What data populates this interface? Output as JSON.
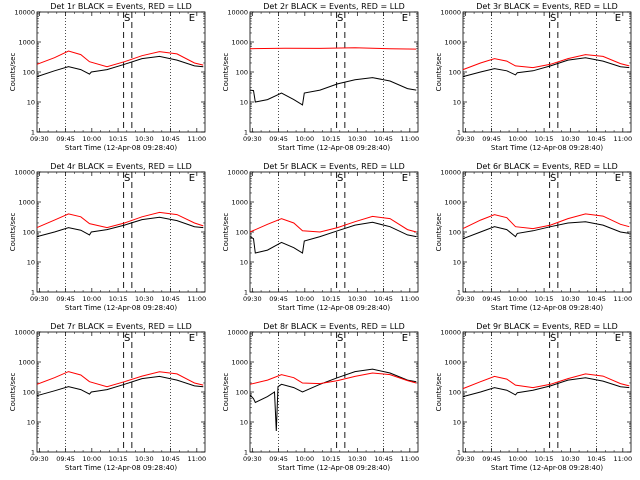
{
  "chart_data": [
    {
      "type": "line",
      "title": "Det 1r BLACK = Events, RED = LLD",
      "xlabel": "Start Time (12-Apr-08 09:28:40)",
      "ylabel": "Counts/sec",
      "yscale": "log",
      "ylim": [
        1,
        10000
      ],
      "yticks": [
        "1",
        "10",
        "100",
        "1000",
        "10000"
      ],
      "xticks": [
        "09:30",
        "09:45",
        "10:00",
        "10:15",
        "10:30",
        "10:45",
        "11:00"
      ],
      "markers": [
        "S",
        "E"
      ],
      "series": [
        {
          "name": "BLACK",
          "color": "#000000",
          "t": [
            0,
            10,
            18,
            25,
            30,
            31,
            40,
            50,
            60,
            70,
            80,
            90,
            95
          ],
          "values": [
            70,
            110,
            150,
            120,
            85,
            100,
            120,
            180,
            280,
            330,
            250,
            160,
            150
          ]
        },
        {
          "name": "RED",
          "color": "#ff0000",
          "t": [
            0,
            10,
            18,
            25,
            30,
            40,
            50,
            60,
            70,
            80,
            90,
            95
          ],
          "values": [
            180,
            300,
            500,
            380,
            220,
            150,
            220,
            350,
            480,
            400,
            200,
            170
          ]
        }
      ]
    },
    {
      "type": "line",
      "title": "Det 2r BLACK = Events, RED = LLD",
      "xlabel": "Start Time (12-Apr-08 09:28:40)",
      "ylabel": "Counts/sec",
      "yscale": "log",
      "ylim": [
        1,
        10000
      ],
      "yticks": [
        "1",
        "10",
        "100",
        "1000",
        "10000"
      ],
      "xticks": [
        "09:30",
        "09:45",
        "10:00",
        "10:15",
        "10:30",
        "10:45",
        "11:00"
      ],
      "markers": [
        "S",
        "E"
      ],
      "series": [
        {
          "name": "BLACK",
          "color": "#000000",
          "t": [
            0,
            2,
            3,
            10,
            18,
            25,
            30,
            31,
            40,
            50,
            60,
            70,
            80,
            90,
            95
          ],
          "values": [
            25,
            24,
            10,
            12,
            20,
            12,
            8,
            20,
            25,
            40,
            55,
            65,
            50,
            28,
            25
          ]
        },
        {
          "name": "RED",
          "color": "#ff0000",
          "t": [
            0,
            20,
            40,
            60,
            70,
            80,
            95
          ],
          "values": [
            600,
            620,
            610,
            640,
            620,
            600,
            580
          ]
        }
      ]
    },
    {
      "type": "line",
      "title": "Det 3r BLACK = Events, RED = LLD",
      "xlabel": "Start Time (12-Apr-08 09:28:40)",
      "ylabel": "Counts/sec",
      "yscale": "log",
      "ylim": [
        1,
        10000
      ],
      "yticks": [
        "1",
        "10",
        "100",
        "1000",
        "10000"
      ],
      "xticks": [
        "09:30",
        "09:45",
        "10:00",
        "10:15",
        "10:30",
        "10:45",
        "11:00"
      ],
      "markers": [
        "S",
        "E"
      ],
      "series": [
        {
          "name": "BLACK",
          "color": "#000000",
          "t": [
            0,
            10,
            18,
            25,
            30,
            31,
            40,
            50,
            60,
            70,
            80,
            90,
            95
          ],
          "values": [
            70,
            100,
            130,
            110,
            80,
            95,
            110,
            160,
            250,
            300,
            230,
            150,
            140
          ]
        },
        {
          "name": "RED",
          "color": "#ff0000",
          "t": [
            0,
            10,
            18,
            25,
            30,
            40,
            50,
            60,
            70,
            80,
            90,
            95
          ],
          "values": [
            120,
            200,
            280,
            230,
            160,
            140,
            180,
            280,
            380,
            330,
            190,
            160
          ]
        }
      ]
    },
    {
      "type": "line",
      "title": "Det 4r BLACK = Events, RED = LLD",
      "xlabel": "Start Time (12-Apr-08 09:28:40)",
      "ylabel": "Counts/sec",
      "yscale": "log",
      "ylim": [
        1,
        10000
      ],
      "yticks": [
        "1",
        "10",
        "100",
        "1000",
        "10000"
      ],
      "xticks": [
        "09:30",
        "09:45",
        "10:00",
        "10:15",
        "10:30",
        "10:45",
        "11:00"
      ],
      "markers": [
        "S",
        "E"
      ],
      "series": [
        {
          "name": "BLACK",
          "color": "#000000",
          "t": [
            0,
            10,
            18,
            25,
            30,
            31,
            40,
            50,
            60,
            70,
            80,
            90,
            95
          ],
          "values": [
            70,
            100,
            140,
            115,
            80,
            100,
            120,
            170,
            260,
            310,
            240,
            150,
            140
          ]
        },
        {
          "name": "RED",
          "color": "#ff0000",
          "t": [
            0,
            10,
            18,
            25,
            30,
            40,
            50,
            60,
            70,
            80,
            90,
            95
          ],
          "values": [
            140,
            250,
            400,
            320,
            190,
            140,
            200,
            320,
            450,
            380,
            200,
            160
          ]
        }
      ]
    },
    {
      "type": "line",
      "title": "Det 5r BLACK = Events, RED = LLD",
      "xlabel": "Start Time (12-Apr-08 09:28:40)",
      "ylabel": "Counts/sec",
      "yscale": "log",
      "ylim": [
        1,
        10000
      ],
      "yticks": [
        "1",
        "10",
        "100",
        "1000",
        "10000"
      ],
      "xticks": [
        "09:30",
        "09:45",
        "10:00",
        "10:15",
        "10:30",
        "10:45",
        "11:00"
      ],
      "markers": [
        "S",
        "E"
      ],
      "series": [
        {
          "name": "BLACK",
          "color": "#000000",
          "t": [
            0,
            2,
            3,
            10,
            18,
            25,
            30,
            31,
            40,
            50,
            60,
            70,
            80,
            90,
            95
          ],
          "values": [
            70,
            60,
            20,
            25,
            45,
            30,
            20,
            50,
            70,
            110,
            170,
            210,
            150,
            80,
            70
          ]
        },
        {
          "name": "RED",
          "color": "#ff0000",
          "t": [
            0,
            10,
            18,
            25,
            30,
            40,
            50,
            60,
            70,
            80,
            90,
            95
          ],
          "values": [
            100,
            180,
            280,
            200,
            110,
            100,
            140,
            220,
            330,
            280,
            120,
            100
          ]
        }
      ]
    },
    {
      "type": "line",
      "title": "Det 6r BLACK = Events, RED = LLD",
      "xlabel": "Start Time (12-Apr-08 09:28:40)",
      "ylabel": "Counts/sec",
      "yscale": "log",
      "ylim": [
        1,
        10000
      ],
      "yticks": [
        "1",
        "10",
        "100",
        "1000",
        "10000"
      ],
      "xticks": [
        "09:30",
        "09:45",
        "10:00",
        "10:15",
        "10:30",
        "10:45",
        "11:00"
      ],
      "markers": [
        "S",
        "E"
      ],
      "series": [
        {
          "name": "BLACK",
          "color": "#000000",
          "t": [
            0,
            10,
            18,
            25,
            30,
            31,
            40,
            50,
            60,
            70,
            80,
            90,
            95
          ],
          "values": [
            60,
            100,
            150,
            120,
            70,
            90,
            110,
            150,
            200,
            220,
            170,
            100,
            90
          ]
        },
        {
          "name": "RED",
          "color": "#ff0000",
          "t": [
            0,
            10,
            18,
            25,
            30,
            40,
            50,
            60,
            70,
            80,
            90,
            95
          ],
          "values": [
            130,
            250,
            380,
            300,
            150,
            130,
            170,
            280,
            400,
            340,
            180,
            150
          ]
        }
      ]
    },
    {
      "type": "line",
      "title": "Det 7r BLACK = Events, RED = LLD",
      "xlabel": "Start Time (12-Apr-08 09:28:40)",
      "ylabel": "Counts/sec",
      "yscale": "log",
      "ylim": [
        1,
        10000
      ],
      "yticks": [
        "1",
        "10",
        "100",
        "1000",
        "10000"
      ],
      "xticks": [
        "09:30",
        "09:45",
        "10:00",
        "10:15",
        "10:30",
        "10:45",
        "11:00"
      ],
      "markers": [
        "S",
        "E"
      ],
      "series": [
        {
          "name": "BLACK",
          "color": "#000000",
          "t": [
            0,
            10,
            18,
            25,
            30,
            31,
            40,
            50,
            60,
            70,
            80,
            90,
            95
          ],
          "values": [
            75,
            110,
            150,
            120,
            85,
            100,
            120,
            180,
            280,
            330,
            250,
            160,
            150
          ]
        },
        {
          "name": "RED",
          "color": "#ff0000",
          "t": [
            0,
            10,
            18,
            25,
            30,
            40,
            50,
            60,
            70,
            80,
            90,
            95
          ],
          "values": [
            180,
            300,
            480,
            370,
            220,
            150,
            220,
            340,
            470,
            400,
            200,
            170
          ]
        }
      ]
    },
    {
      "type": "line",
      "title": "Det 8r BLACK = Events, RED = LLD",
      "xlabel": "Start Time (12-Apr-08 09:28:40)",
      "ylabel": "Counts/sec",
      "yscale": "log",
      "ylim": [
        1,
        10000
      ],
      "yticks": [
        "1",
        "10",
        "100",
        "1000",
        "10000"
      ],
      "xticks": [
        "09:30",
        "09:45",
        "10:00",
        "10:15",
        "10:30",
        "10:45",
        "11:00"
      ],
      "markers": [
        "S",
        "E"
      ],
      "series": [
        {
          "name": "BLACK",
          "color": "#000000",
          "t": [
            0,
            2,
            3,
            10,
            14,
            15,
            16,
            18,
            25,
            30,
            40,
            50,
            60,
            70,
            80,
            90,
            95
          ],
          "values": [
            80,
            60,
            45,
            70,
            100,
            5,
            150,
            180,
            140,
            100,
            180,
            300,
            480,
            580,
            430,
            250,
            220
          ]
        },
        {
          "name": "RED",
          "color": "#ff0000",
          "t": [
            0,
            10,
            18,
            25,
            30,
            40,
            50,
            60,
            70,
            80,
            90,
            95
          ],
          "values": [
            180,
            250,
            380,
            300,
            200,
            190,
            240,
            330,
            430,
            380,
            240,
            200
          ]
        }
      ]
    },
    {
      "type": "line",
      "title": "Det 9r BLACK = Events, RED = LLD",
      "xlabel": "Start Time (12-Apr-08 09:28:40)",
      "ylabel": "Counts/sec",
      "yscale": "log",
      "ylim": [
        1,
        10000
      ],
      "yticks": [
        "1",
        "10",
        "100",
        "1000",
        "10000"
      ],
      "xticks": [
        "09:30",
        "09:45",
        "10:00",
        "10:15",
        "10:30",
        "10:45",
        "11:00"
      ],
      "markers": [
        "S",
        "E"
      ],
      "series": [
        {
          "name": "BLACK",
          "color": "#000000",
          "t": [
            0,
            10,
            18,
            25,
            30,
            31,
            40,
            50,
            60,
            70,
            80,
            90,
            95
          ],
          "values": [
            70,
            100,
            140,
            115,
            80,
            95,
            115,
            160,
            250,
            300,
            230,
            150,
            140
          ]
        },
        {
          "name": "RED",
          "color": "#ff0000",
          "t": [
            0,
            10,
            18,
            25,
            30,
            40,
            50,
            60,
            70,
            80,
            90,
            95
          ],
          "values": [
            130,
            220,
            330,
            270,
            170,
            140,
            180,
            280,
            400,
            340,
            190,
            160
          ]
        }
      ]
    }
  ]
}
